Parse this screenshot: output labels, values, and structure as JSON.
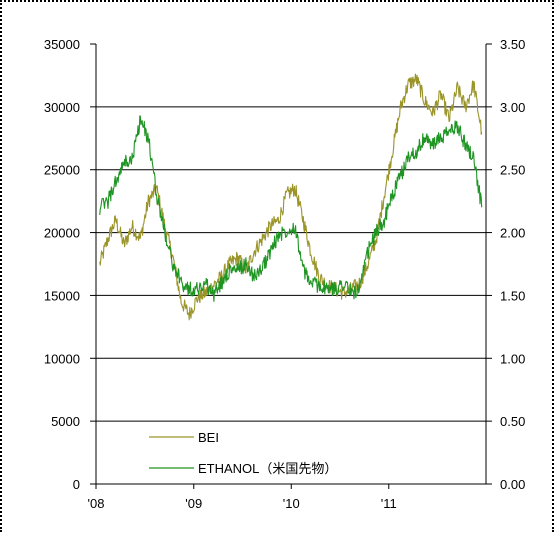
{
  "chart_data": {
    "type": "line",
    "title": "",
    "x_tick_labels": [
      "'08",
      "'09",
      "'10",
      "'11"
    ],
    "x_range": [
      "2008-01",
      "2011-12"
    ],
    "y_left": {
      "ticks": [
        "35000",
        "30000",
        "25000",
        "20000",
        "15000",
        "10000",
        "5000",
        "0"
      ],
      "min": 0,
      "max": 35000
    },
    "y_right": {
      "ticks": [
        "3.50",
        "3.00",
        "2.50",
        "2.00",
        "1.50",
        "1.00",
        "0.50",
        "0.00"
      ],
      "min": 0,
      "max": 3.5
    },
    "grid": "horizontal",
    "legend_position": "bottom-left inside plot",
    "series": [
      {
        "name": "BEI",
        "axis": "left",
        "color": "#9a9429",
        "x": [
          "2008-01",
          "2008-02",
          "2008-03",
          "2008-04",
          "2008-05",
          "2008-06",
          "2008-07",
          "2008-08",
          "2008-09",
          "2008-10",
          "2008-11",
          "2008-12",
          "2009-01",
          "2009-02",
          "2009-03",
          "2009-04",
          "2009-05",
          "2009-06",
          "2009-07",
          "2009-08",
          "2009-09",
          "2009-10",
          "2009-11",
          "2009-12",
          "2010-01",
          "2010-02",
          "2010-03",
          "2010-04",
          "2010-05",
          "2010-06",
          "2010-07",
          "2010-08",
          "2010-09",
          "2010-10",
          "2010-11",
          "2010-12",
          "2011-01",
          "2011-02",
          "2011-03",
          "2011-04",
          "2011-05",
          "2011-06",
          "2011-07",
          "2011-08",
          "2011-09",
          "2011-10",
          "2011-11",
          "2011-12"
        ],
        "values": [
          17500,
          19500,
          21000,
          19000,
          20500,
          19500,
          22500,
          23500,
          20500,
          18000,
          14500,
          13500,
          14800,
          15200,
          15800,
          16500,
          17500,
          18000,
          17000,
          18500,
          19500,
          20500,
          21000,
          23000,
          23500,
          21000,
          18500,
          16500,
          15800,
          15500,
          15200,
          15500,
          16000,
          17500,
          19500,
          23000,
          26500,
          30000,
          31800,
          32200,
          30500,
          29500,
          31000,
          29000,
          31500,
          30000,
          31800,
          28000
        ]
      },
      {
        "name": "ETHANOL（米国先物）",
        "axis": "right",
        "color": "#1e9422",
        "x": [
          "2008-01",
          "2008-02",
          "2008-03",
          "2008-04",
          "2008-05",
          "2008-06",
          "2008-07",
          "2008-08",
          "2008-09",
          "2008-10",
          "2008-11",
          "2008-12",
          "2009-01",
          "2009-02",
          "2009-03",
          "2009-04",
          "2009-05",
          "2009-06",
          "2009-07",
          "2009-08",
          "2009-09",
          "2009-10",
          "2009-11",
          "2009-12",
          "2010-01",
          "2010-02",
          "2010-03",
          "2010-04",
          "2010-05",
          "2010-06",
          "2010-07",
          "2010-08",
          "2010-09",
          "2010-10",
          "2010-11",
          "2010-12",
          "2011-01",
          "2011-02",
          "2011-03",
          "2011-04",
          "2011-05",
          "2011-06",
          "2011-07",
          "2011-08",
          "2011-09",
          "2011-10",
          "2011-11",
          "2011-12"
        ],
        "values": [
          2.2,
          2.25,
          2.4,
          2.55,
          2.58,
          2.9,
          2.75,
          2.3,
          2.0,
          1.75,
          1.6,
          1.55,
          1.55,
          1.6,
          1.5,
          1.6,
          1.7,
          1.7,
          1.75,
          1.65,
          1.72,
          1.85,
          1.98,
          2.02,
          2.05,
          1.7,
          1.6,
          1.58,
          1.55,
          1.55,
          1.6,
          1.52,
          1.55,
          1.85,
          2.0,
          2.1,
          2.3,
          2.45,
          2.6,
          2.65,
          2.75,
          2.7,
          2.75,
          2.8,
          2.85,
          2.7,
          2.6,
          2.2
        ]
      }
    ]
  }
}
